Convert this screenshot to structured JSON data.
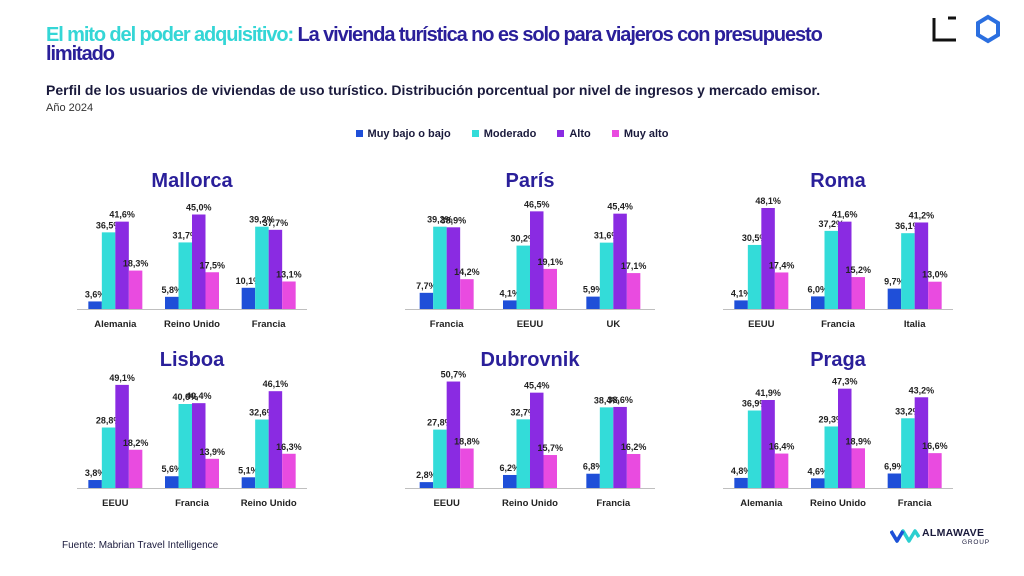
{
  "header": {
    "title_highlight": "El mito del poder adquisitivo:",
    "title_main": "La vivienda turística no es solo para viajeros con presupuesto limitado",
    "subtitle": "Perfil de los usuarios de viviendas de uso turístico. Distribución porcentual por nivel de ingresos y mercado emisor.",
    "year": "Año 2024"
  },
  "legend": [
    {
      "label": "Muy bajo o bajo",
      "color": "#1f4fd8"
    },
    {
      "label": "Moderado",
      "color": "#33dcd9"
    },
    {
      "label": "Alto",
      "color": "#8a2be2"
    },
    {
      "label": "Muy alto",
      "color": "#e94be0"
    }
  ],
  "footer": {
    "source": "Fuente: Mabrian Travel Intelligence",
    "brand": "ALMAWAVE",
    "brand_sub": "GROUP"
  },
  "chart_data": [
    {
      "type": "bar",
      "title": "Mallorca",
      "categories": [
        "Alemania",
        "Reino Unido",
        "Francia"
      ],
      "series": [
        {
          "name": "Muy bajo o bajo",
          "values": [
            3.6,
            5.8,
            10.1
          ],
          "labels": [
            "3,6%",
            "5,8%",
            "10,1%"
          ]
        },
        {
          "name": "Moderado",
          "values": [
            36.5,
            31.7,
            39.2
          ],
          "labels": [
            "36,5%",
            "31,7%",
            "39,2%"
          ]
        },
        {
          "name": "Alto",
          "values": [
            41.6,
            45.0,
            37.7
          ],
          "labels": [
            "41,6%",
            "45,0%",
            "37,7%"
          ]
        },
        {
          "name": "Muy alto",
          "values": [
            18.3,
            17.5,
            13.1
          ],
          "labels": [
            "18,3%",
            "17,5%",
            "13,1%"
          ]
        }
      ]
    },
    {
      "type": "bar",
      "title": "París",
      "categories": [
        "Francia",
        "EEUU",
        "UK"
      ],
      "series": [
        {
          "name": "Muy bajo o bajo",
          "values": [
            7.7,
            4.1,
            5.9
          ],
          "labels": [
            "7,7%",
            "4,1%",
            "5,9%"
          ]
        },
        {
          "name": "Moderado",
          "values": [
            39.2,
            30.2,
            31.6
          ],
          "labels": [
            "39,2%",
            "30,2%",
            "31,6%"
          ]
        },
        {
          "name": "Alto",
          "values": [
            38.9,
            46.5,
            45.4
          ],
          "labels": [
            "38,9%",
            "46,5%",
            "45,4%"
          ]
        },
        {
          "name": "Muy alto",
          "values": [
            14.2,
            19.1,
            17.1
          ],
          "labels": [
            "14,2%",
            "19,1%",
            "17,1%"
          ]
        }
      ]
    },
    {
      "type": "bar",
      "title": "Roma",
      "categories": [
        "EEUU",
        "Francia",
        "Italia"
      ],
      "series": [
        {
          "name": "Muy bajo o bajo",
          "values": [
            4.1,
            6.0,
            9.7
          ],
          "labels": [
            "4,1%",
            "6,0%",
            "9,7%"
          ]
        },
        {
          "name": "Moderado",
          "values": [
            30.5,
            37.2,
            36.1
          ],
          "labels": [
            "30,5%",
            "37,2%",
            "36,1%"
          ]
        },
        {
          "name": "Alto",
          "values": [
            48.1,
            41.6,
            41.2
          ],
          "labels": [
            "48,1%",
            "41,6%",
            "41,2%"
          ]
        },
        {
          "name": "Muy alto",
          "values": [
            17.4,
            15.2,
            13.0
          ],
          "labels": [
            "17,4%",
            "15,2%",
            "13,0%"
          ]
        }
      ]
    },
    {
      "type": "bar",
      "title": "Lisboa",
      "categories": [
        "EEUU",
        "Francia",
        "Reino Unido"
      ],
      "series": [
        {
          "name": "Muy bajo o bajo",
          "values": [
            3.8,
            5.6,
            5.1
          ],
          "labels": [
            "3,8%",
            "5,6%",
            "5,1%"
          ]
        },
        {
          "name": "Moderado",
          "values": [
            28.8,
            40.0,
            32.6
          ],
          "labels": [
            "28,8%",
            "40,0%",
            "32,6%"
          ]
        },
        {
          "name": "Alto",
          "values": [
            49.1,
            40.4,
            46.1
          ],
          "labels": [
            "49,1%",
            "40,4%",
            "46,1%"
          ]
        },
        {
          "name": "Muy alto",
          "values": [
            18.2,
            13.9,
            16.3
          ],
          "labels": [
            "18,2%",
            "13,9%",
            "16,3%"
          ]
        }
      ]
    },
    {
      "type": "bar",
      "title": "Dubrovnik",
      "categories": [
        "EEUU",
        "Reino Unido",
        "Francia"
      ],
      "series": [
        {
          "name": "Muy bajo o bajo",
          "values": [
            2.8,
            6.2,
            6.8
          ],
          "labels": [
            "2,8%",
            "6,2%",
            "6,8%"
          ]
        },
        {
          "name": "Moderado",
          "values": [
            27.8,
            32.7,
            38.4
          ],
          "labels": [
            "27,8%",
            "32,7%",
            "38,4%"
          ]
        },
        {
          "name": "Alto",
          "values": [
            50.7,
            45.4,
            38.6
          ],
          "labels": [
            "50,7%",
            "45,4%",
            "38,6%"
          ]
        },
        {
          "name": "Muy alto",
          "values": [
            18.8,
            15.7,
            16.2
          ],
          "labels": [
            "18,8%",
            "15,7%",
            "16,2%"
          ]
        }
      ]
    },
    {
      "type": "bar",
      "title": "Praga",
      "categories": [
        "Alemania",
        "Reino Unido",
        "Francia"
      ],
      "series": [
        {
          "name": "Muy bajo o bajo",
          "values": [
            4.8,
            4.6,
            6.9
          ],
          "labels": [
            "4,8%",
            "4,6%",
            "6,9%"
          ]
        },
        {
          "name": "Moderado",
          "values": [
            36.9,
            29.3,
            33.2
          ],
          "labels": [
            "36,9%",
            "29,3%",
            "33,2%"
          ]
        },
        {
          "name": "Alto",
          "values": [
            41.9,
            47.3,
            43.2
          ],
          "labels": [
            "41,9%",
            "47,3%",
            "43,2%"
          ]
        },
        {
          "name": "Muy alto",
          "values": [
            16.4,
            18.9,
            16.6
          ],
          "labels": [
            "16,4%",
            "18,9%",
            "16,6%"
          ]
        }
      ]
    }
  ]
}
